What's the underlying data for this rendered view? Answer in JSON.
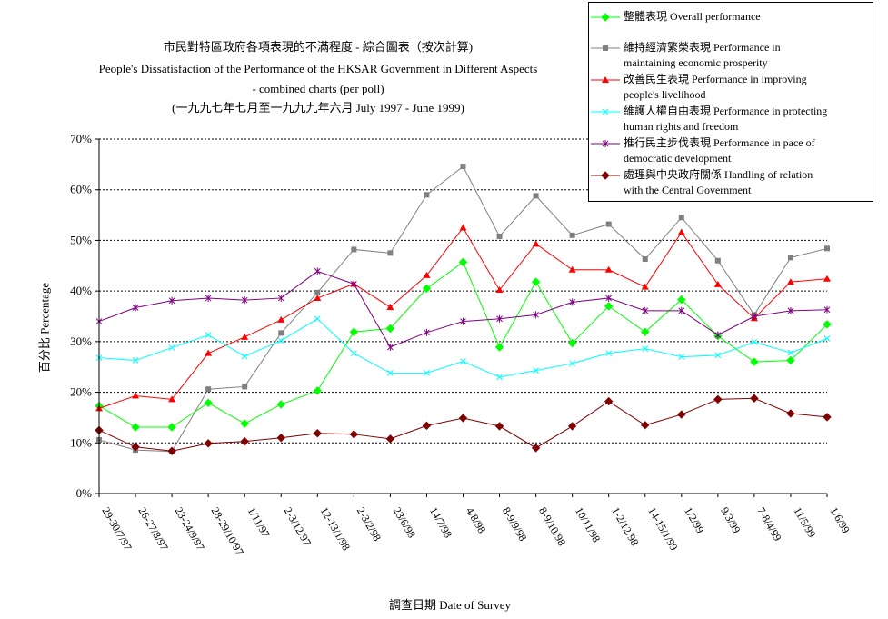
{
  "titles": {
    "line1": "市民對特區政府各項表現的不滿程度  -  綜合圖表（按次計算)",
    "line2": "People's Dissatisfaction of the Performance of the HKSAR Government in Different Aspects",
    "line3": "- combined charts  (per poll)",
    "line4": "(一九九七年七月至一九九九年六月 July 1997 - June 1999)"
  },
  "chart_data": {
    "type": "line",
    "title": "市民對特區政府各項表現的不滿程度 - 綜合圖表（按次計算) People's Dissatisfaction of the Performance of the HKSAR Government in Different Aspects - combined charts (per poll)",
    "xlabel": "調查日期 Date of Survey",
    "ylabel": "百分比 Percentage",
    "ylim": [
      0,
      70
    ],
    "yticks": [
      0,
      10,
      20,
      30,
      40,
      50,
      60,
      70
    ],
    "ytick_labels": [
      "0%",
      "10%",
      "20%",
      "30%",
      "40%",
      "50%",
      "60%",
      "70%"
    ],
    "grid": "horizontal dashed",
    "legend_position": "top-right",
    "categories": [
      "29-30/7/97",
      "26-27/8/97",
      "23-24/9/97",
      "28-29/10/97",
      "1/11/97",
      "2-3/12/97",
      "12-13/1/98",
      "2-3/2/98",
      "23/6/98",
      "14/7/98",
      "4/8/98",
      "8-9/9/98",
      "8-9/10/98",
      "10/11/98",
      "1-2/12/98",
      "14-15/1/99",
      "1/2/99",
      "9/3/99",
      "7-8/4/99",
      "11/5/99",
      "1/6/99"
    ],
    "series": [
      {
        "name": "整體表現 Overall performance",
        "color": "#00ff00",
        "marker": "diamond",
        "values": [
          17.3,
          13.1,
          13.1,
          17.9,
          13.8,
          17.6,
          20.3,
          31.9,
          32.6,
          40.5,
          45.7,
          28.9,
          41.8,
          29.7,
          37.0,
          31.9,
          38.3,
          31.1,
          26.0,
          26.3,
          33.4
        ]
      },
      {
        "name": "維持經濟繁榮表現 Performance in maintaining economic prosperity",
        "color": "#808080",
        "marker": "square",
        "values": [
          10.6,
          8.6,
          8.3,
          20.6,
          21.1,
          31.7,
          39.7,
          48.2,
          47.5,
          59.0,
          64.6,
          50.8,
          58.8,
          51.0,
          53.2,
          46.3,
          54.5,
          46.0,
          35.3,
          46.6,
          48.4
        ]
      },
      {
        "name": "改善民生表現 Performance in improving people's livelihood",
        "color": "#ff0000",
        "marker": "triangle",
        "values": [
          16.8,
          19.3,
          18.6,
          27.7,
          30.9,
          34.3,
          38.6,
          41.4,
          36.8,
          43.1,
          52.5,
          40.2,
          49.3,
          44.2,
          44.2,
          40.8,
          51.6,
          41.3,
          34.6,
          41.8,
          42.4
        ]
      },
      {
        "name": "維護人權自由表現 Performance in protecting human rights and freedom",
        "color": "#00ffff",
        "marker": "x",
        "values": [
          26.8,
          26.3,
          28.8,
          31.3,
          27.1,
          30.2,
          34.5,
          27.7,
          23.8,
          23.8,
          26.1,
          23.0,
          24.3,
          25.7,
          27.7,
          28.6,
          27.0,
          27.3,
          29.9,
          27.8,
          30.6
        ]
      },
      {
        "name": "推行民主步伐表現 Performance in pace of democratic development",
        "color": "#800080",
        "marker": "star",
        "values": [
          34.0,
          36.7,
          38.1,
          38.6,
          38.2,
          38.6,
          43.9,
          41.4,
          28.9,
          31.8,
          34.0,
          34.5,
          35.3,
          37.8,
          38.6,
          36.1,
          36.1,
          31.3,
          35.0,
          36.1,
          36.3
        ]
      },
      {
        "name": "處理與中央政府關係 Handling of relation with the Central Government",
        "color": "#800000",
        "marker": "diamond",
        "values": [
          12.5,
          9.2,
          8.4,
          9.9,
          10.3,
          11.0,
          11.9,
          11.7,
          10.8,
          13.4,
          14.9,
          13.3,
          9.0,
          13.3,
          18.2,
          13.5,
          15.6,
          18.6,
          18.8,
          15.8,
          15.1
        ]
      }
    ]
  },
  "legend": [
    {
      "line1": "整體表現 Overall performance",
      "line2": ""
    },
    {
      "line1": "維持經濟繁榮表現 Performance in",
      "line2": "maintaining economic prosperity"
    },
    {
      "line1": "改善民生表現 Performance in improving",
      "line2": "people's livelihood"
    },
    {
      "line1": "維護人權自由表現 Performance in protecting",
      "line2": "human rights and freedom"
    },
    {
      "line1": "推行民主步伐表現 Performance in pace of",
      "line2": "democratic development"
    },
    {
      "line1": "處理與中央政府關係 Handling of relation",
      "line2": "with the Central Government"
    }
  ]
}
